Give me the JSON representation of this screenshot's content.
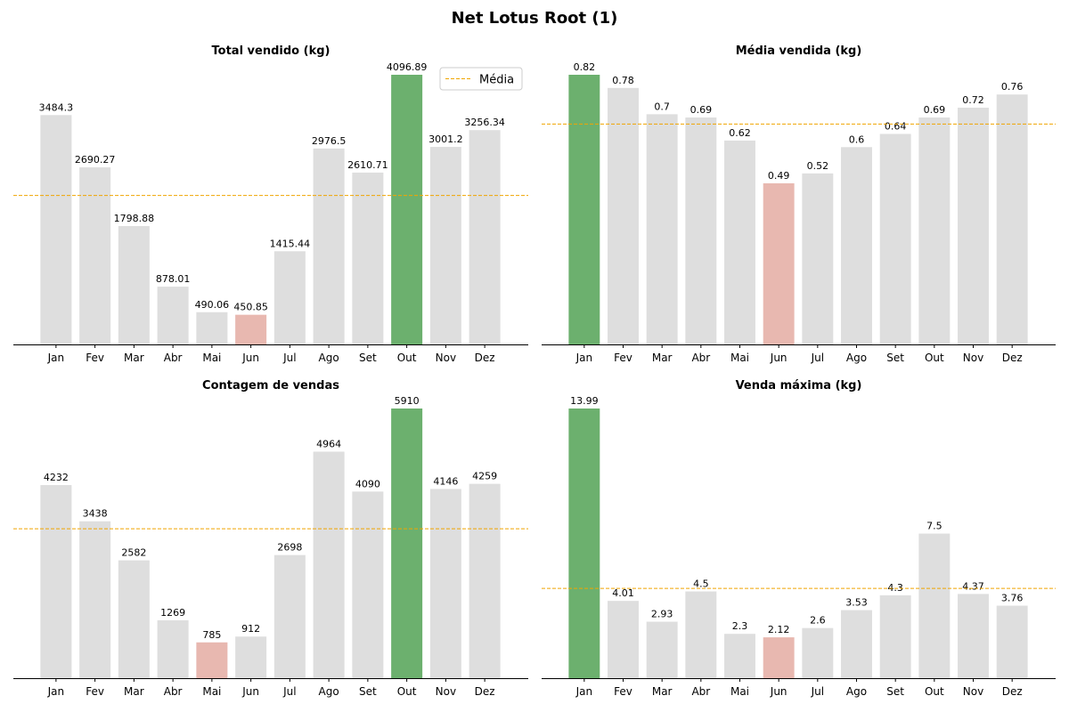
{
  "figure": {
    "title": "Net Lotus Root (1)"
  },
  "colors": {
    "default_bar": "#dedede",
    "max_bar": "#6cb06e",
    "min_bar": "#e8b8b0",
    "mean_line": "#f0a500",
    "axis": "#000000"
  },
  "chart_data": [
    {
      "type": "bar",
      "title": "Total vendido (kg)",
      "categories": [
        "Jan",
        "Fev",
        "Mar",
        "Abr",
        "Mai",
        "Jun",
        "Jul",
        "Ago",
        "Set",
        "Out",
        "Nov",
        "Dez"
      ],
      "values": [
        3484.3,
        2690.27,
        1798.88,
        878.01,
        490.06,
        450.85,
        1415.44,
        2976.5,
        2610.71,
        4096.89,
        3001.2,
        3256.34
      ],
      "value_labels": [
        "3484.3",
        "2690.27",
        "1798.88",
        "878.01",
        "490.06",
        "450.85",
        "1415.44",
        "2976.5",
        "2610.71",
        "4096.89",
        "3001.2",
        "3256.34"
      ],
      "mean": 2262.5,
      "max_index": 9,
      "min_index": 5,
      "legend": {
        "label": "Média",
        "placement": "upper-right"
      }
    },
    {
      "type": "bar",
      "title": "Média vendida (kg)",
      "categories": [
        "Jan",
        "Fev",
        "Mar",
        "Abr",
        "Mai",
        "Jun",
        "Jul",
        "Ago",
        "Set",
        "Out",
        "Nov",
        "Dez"
      ],
      "values": [
        0.82,
        0.78,
        0.7,
        0.69,
        0.62,
        0.49,
        0.52,
        0.6,
        0.64,
        0.69,
        0.72,
        0.76
      ],
      "value_labels": [
        "0.82",
        "0.78",
        "0.7",
        "0.69",
        "0.62",
        "0.49",
        "0.52",
        "0.6",
        "0.64",
        "0.69",
        "0.72",
        "0.76"
      ],
      "mean": 0.67,
      "max_index": 0,
      "min_index": 5
    },
    {
      "type": "bar",
      "title": "Contagem de vendas",
      "categories": [
        "Jan",
        "Fev",
        "Mar",
        "Abr",
        "Mai",
        "Jun",
        "Jul",
        "Ago",
        "Set",
        "Out",
        "Nov",
        "Dez"
      ],
      "values": [
        4232,
        3438,
        2582,
        1269,
        785,
        912,
        2698,
        4964,
        4090,
        5910,
        4146,
        4259
      ],
      "value_labels": [
        "4232",
        "3438",
        "2582",
        "1269",
        "785",
        "912",
        "2698",
        "4964",
        "4090",
        "5910",
        "4146",
        "4259"
      ],
      "mean": 3273.75,
      "max_index": 9,
      "min_index": 4
    },
    {
      "type": "bar",
      "title": "Venda máxima (kg)",
      "categories": [
        "Jan",
        "Fev",
        "Mar",
        "Abr",
        "Mai",
        "Jun",
        "Jul",
        "Ago",
        "Set",
        "Out",
        "Nov",
        "Dez"
      ],
      "values": [
        13.99,
        4.01,
        2.93,
        4.5,
        2.3,
        2.12,
        2.6,
        3.53,
        4.3,
        7.5,
        4.37,
        3.76
      ],
      "value_labels": [
        "13.99",
        "4.01",
        "2.93",
        "4.5",
        "2.3",
        "2.12",
        "2.6",
        "3.53",
        "4.3",
        "7.5",
        "4.37",
        "3.76"
      ],
      "mean": 4.66,
      "max_index": 0,
      "min_index": 5
    }
  ]
}
